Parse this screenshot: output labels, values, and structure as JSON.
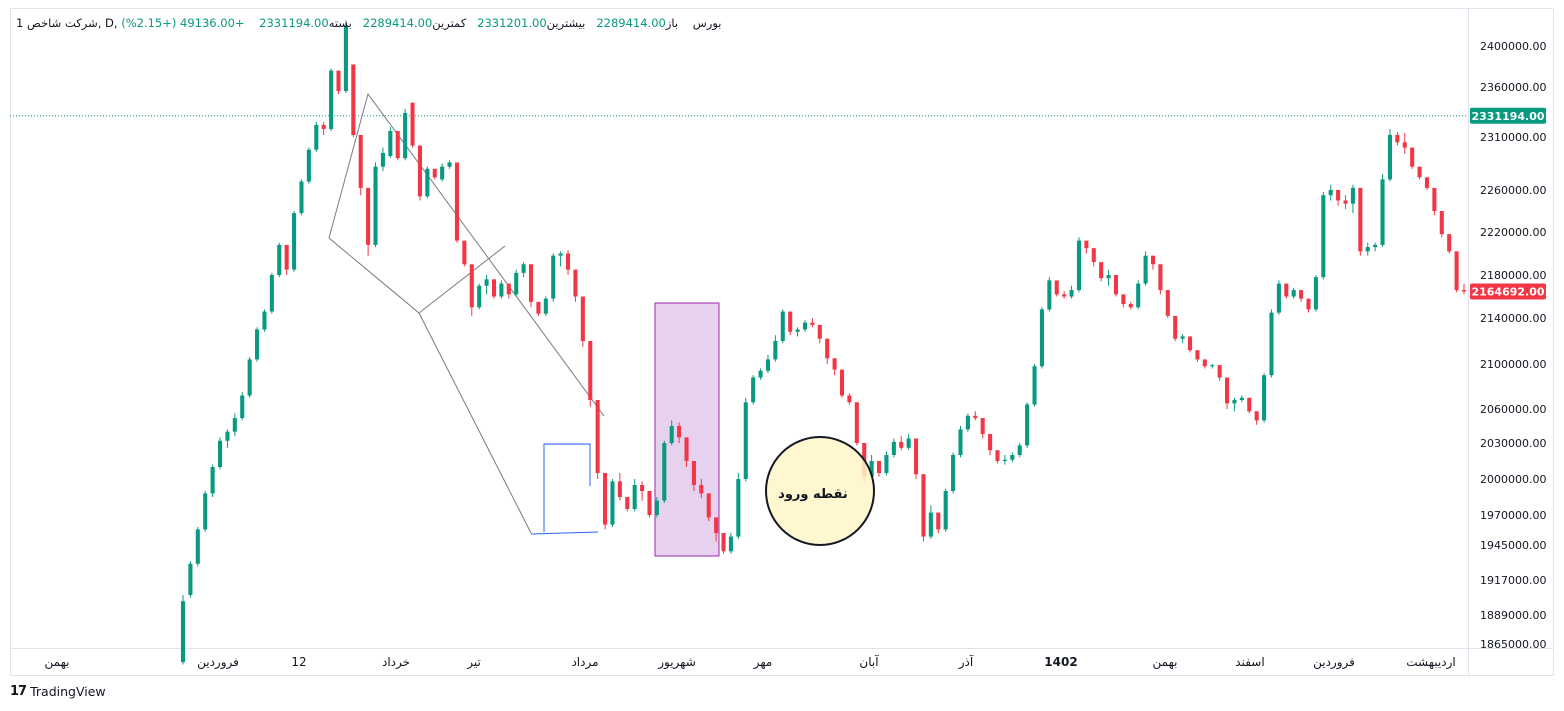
{
  "legend": {
    "symbol": "شرکت شاخص, D, بورس",
    "open_label": "باز",
    "open_value": "2289414.00",
    "high_label": "بیشترین",
    "high_value": "2331201.00",
    "low_label": "کمترین",
    "low_value": "2289414.00",
    "close_label": "بسته",
    "close_value": "2331194.00",
    "change": "+49136.00 (+2.15%)",
    "interval_mark": "1"
  },
  "brand": {
    "logo": "17",
    "name": "TradingView"
  },
  "annotation": {
    "entry_point_label": "نقطه ورود"
  },
  "colors": {
    "up": "#089981",
    "down": "#f23645",
    "last_price_tag": "#089981",
    "current_price_tag": "#f23645",
    "highlight_fill": "#e6d1ef",
    "highlight_stroke": "#9c27b0",
    "circle_fill": "#fff6c8",
    "rect_stroke": "#2962ff",
    "trendline": "#787b86"
  },
  "chart_data": {
    "type": "candlestick",
    "y_scale": "log",
    "y_ticks": [
      2400000,
      2360000,
      2310000,
      2260000,
      2220000,
      2180000,
      2140000,
      2100000,
      2060000,
      2030000,
      2000000,
      1970000,
      1945000,
      1917000,
      1889000,
      1865000
    ],
    "y_tick_labels": [
      "2400000.00",
      "2360000.00",
      "2310000.00",
      "2260000.00",
      "2220000.00",
      "2180000.00",
      "2140000.00",
      "2100000.00",
      "2060000.00",
      "2030000.00",
      "2000000.00",
      "1970000.00",
      "1945000.00",
      "1917000.00",
      "1889000.00",
      "1865000.00"
    ],
    "price_tags": [
      {
        "value": 2331194,
        "label": "2331194.00",
        "kind": "last"
      },
      {
        "value": 2164692,
        "label": "2164692.00",
        "kind": "current"
      }
    ],
    "x_labels": [
      "بهمن",
      "فروردین",
      "12",
      "خرداد",
      "تیر",
      "مرداد",
      "شهریور",
      "مهر",
      "آبان",
      "آذر",
      "1402",
      "بهمن",
      "اسفند",
      "فروردین",
      "اردیبهشت"
    ],
    "x_label_bold": [
      false,
      false,
      false,
      false,
      false,
      false,
      false,
      false,
      false,
      false,
      true,
      false,
      false,
      false,
      false
    ],
    "candles_ohlc": [
      [
        1850000,
        1905000,
        1848000,
        1900000
      ],
      [
        1905000,
        1932000,
        1903000,
        1930000
      ],
      [
        1930000,
        1960000,
        1928000,
        1958000
      ],
      [
        1958000,
        1990000,
        1956000,
        1988000
      ],
      [
        1988000,
        2012000,
        1985000,
        2010000
      ],
      [
        2010000,
        2035000,
        2008000,
        2032000
      ],
      [
        2032000,
        2042000,
        2026000,
        2040000
      ],
      [
        2040000,
        2056000,
        2036000,
        2052000
      ],
      [
        2052000,
        2075000,
        2050000,
        2072000
      ],
      [
        2072000,
        2106000,
        2070000,
        2104000
      ],
      [
        2104000,
        2132000,
        2102000,
        2130000
      ],
      [
        2130000,
        2148000,
        2128000,
        2146000
      ],
      [
        2146000,
        2182000,
        2144000,
        2180000
      ],
      [
        2180000,
        2210000,
        2178000,
        2208000
      ],
      [
        2208000,
        2205000,
        2180000,
        2185000
      ],
      [
        2185000,
        2240000,
        2183000,
        2238000
      ],
      [
        2238000,
        2270000,
        2236000,
        2268000
      ],
      [
        2268000,
        2300000,
        2266000,
        2298000
      ],
      [
        2298000,
        2325000,
        2296000,
        2322000
      ],
      [
        2322000,
        2325000,
        2312000,
        2318000
      ],
      [
        2318000,
        2378000,
        2316000,
        2376000
      ],
      [
        2376000,
        2368000,
        2353000,
        2356000
      ],
      [
        2356000,
        2425000,
        2354000,
        2420000
      ],
      [
        2382000,
        2380000,
        2310000,
        2312000
      ],
      [
        2312000,
        2308000,
        2255000,
        2262000
      ],
      [
        2262000,
        2262000,
        2198000,
        2208000
      ],
      [
        2208000,
        2286000,
        2206000,
        2282000
      ],
      [
        2282000,
        2300000,
        2278000,
        2295000
      ],
      [
        2292000,
        2320000,
        2290000,
        2316000
      ],
      [
        2316000,
        2300000,
        2288000,
        2290000
      ],
      [
        2290000,
        2338000,
        2288000,
        2334000
      ],
      [
        2344000,
        2345000,
        2300000,
        2302000
      ],
      [
        2302000,
        2300000,
        2250000,
        2254000
      ],
      [
        2254000,
        2282000,
        2252000,
        2280000
      ],
      [
        2280000,
        2278000,
        2270000,
        2272000
      ],
      [
        2270000,
        2285000,
        2268000,
        2282000
      ],
      [
        2282000,
        2288000,
        2280000,
        2286000
      ],
      [
        2286000,
        2272000,
        2210000,
        2212000
      ],
      [
        2212000,
        2208000,
        2188000,
        2190000
      ],
      [
        2190000,
        2188000,
        2142000,
        2150000
      ],
      [
        2150000,
        2172000,
        2148000,
        2170000
      ],
      [
        2170000,
        2180000,
        2162000,
        2176000
      ],
      [
        2176000,
        2174000,
        2158000,
        2160000
      ],
      [
        2160000,
        2175000,
        2158000,
        2172000
      ],
      [
        2172000,
        2170000,
        2158000,
        2162000
      ],
      [
        2162000,
        2185000,
        2160000,
        2182000
      ],
      [
        2182000,
        2192000,
        2178000,
        2190000
      ],
      [
        2190000,
        2188000,
        2150000,
        2155000
      ],
      [
        2155000,
        2152000,
        2142000,
        2144000
      ],
      [
        2144000,
        2160000,
        2142000,
        2158000
      ],
      [
        2158000,
        2200000,
        2155000,
        2198000
      ],
      [
        2198000,
        2202000,
        2188000,
        2200000
      ],
      [
        2200000,
        2203000,
        2180000,
        2185000
      ],
      [
        2185000,
        2182000,
        2155000,
        2160000
      ],
      [
        2160000,
        2155000,
        2115000,
        2120000
      ],
      [
        2120000,
        2118000,
        2062000,
        2068000
      ],
      [
        2068000,
        2065000,
        2000000,
        2005000
      ],
      [
        2005000,
        2002000,
        1958000,
        1962000
      ],
      [
        1962000,
        2000000,
        1960000,
        1998000
      ],
      [
        1998000,
        2005000,
        1982000,
        1985000
      ],
      [
        1985000,
        1982000,
        1973000,
        1975000
      ],
      [
        1975000,
        2000000,
        1973000,
        1995000
      ],
      [
        1995000,
        1998000,
        1982000,
        1990000
      ],
      [
        1990000,
        1988000,
        1968000,
        1970000
      ],
      [
        1970000,
        1985000,
        1968000,
        1982000
      ],
      [
        1982000,
        2032000,
        1980000,
        2030000
      ],
      [
        2030000,
        2050000,
        2028000,
        2045000
      ],
      [
        2045000,
        2048000,
        2030000,
        2035000
      ],
      [
        2035000,
        2032000,
        2010000,
        2015000
      ],
      [
        2015000,
        2010000,
        1990000,
        1995000
      ],
      [
        1995000,
        2000000,
        1984000,
        1988000
      ],
      [
        1988000,
        1985000,
        1965000,
        1968000
      ],
      [
        1968000,
        1962000,
        1948000,
        1955000
      ],
      [
        1955000,
        1952000,
        1938000,
        1940000
      ],
      [
        1940000,
        1955000,
        1938000,
        1952000
      ],
      [
        1952000,
        2005000,
        1950000,
        2000000
      ],
      [
        2000000,
        2070000,
        1998000,
        2066000
      ],
      [
        2066000,
        2090000,
        2064000,
        2088000
      ],
      [
        2088000,
        2096000,
        2086000,
        2094000
      ],
      [
        2094000,
        2108000,
        2092000,
        2104000
      ],
      [
        2104000,
        2125000,
        2102000,
        2120000
      ],
      [
        2120000,
        2148000,
        2118000,
        2146000
      ],
      [
        2146000,
        2145000,
        2125000,
        2128000
      ],
      [
        2128000,
        2132000,
        2124000,
        2130000
      ],
      [
        2130000,
        2138000,
        2128000,
        2136000
      ],
      [
        2136000,
        2140000,
        2132000,
        2134000
      ],
      [
        2134000,
        2132000,
        2118000,
        2122000
      ],
      [
        2122000,
        2120000,
        2100000,
        2105000
      ],
      [
        2105000,
        2102000,
        2090000,
        2095000
      ],
      [
        2095000,
        2090000,
        2070000,
        2072000
      ],
      [
        2072000,
        2074000,
        2064000,
        2066000
      ],
      [
        2066000,
        2064000,
        2028000,
        2030000
      ],
      [
        2030000,
        2025000,
        1998000,
        2002000
      ],
      [
        2002000,
        2020000,
        2000000,
        2015000
      ],
      [
        2015000,
        2013000,
        2002000,
        2005000
      ],
      [
        2005000,
        2023000,
        2003000,
        2020000
      ],
      [
        2020000,
        2034000,
        2018000,
        2031000
      ],
      [
        2031000,
        2036000,
        2024000,
        2026000
      ],
      [
        2026000,
        2038000,
        2024000,
        2034000
      ],
      [
        2034000,
        2032000,
        2000000,
        2004000
      ],
      [
        2004000,
        1990000,
        1948000,
        1952000
      ],
      [
        1952000,
        1978000,
        1950000,
        1972000
      ],
      [
        1972000,
        1970000,
        1955000,
        1958000
      ],
      [
        1958000,
        1992000,
        1956000,
        1990000
      ],
      [
        1990000,
        2022000,
        1988000,
        2020000
      ],
      [
        2020000,
        2045000,
        2018000,
        2042000
      ],
      [
        2042000,
        2056000,
        2040000,
        2054000
      ],
      [
        2054000,
        2058000,
        2050000,
        2052000
      ],
      [
        2052000,
        2050000,
        2034000,
        2038000
      ],
      [
        2038000,
        2036000,
        2020000,
        2024000
      ],
      [
        2024000,
        2022000,
        2013000,
        2015000
      ],
      [
        2015000,
        2020000,
        2012000,
        2016000
      ],
      [
        2016000,
        2022000,
        2014000,
        2020000
      ],
      [
        2020000,
        2030000,
        2018000,
        2028000
      ],
      [
        2028000,
        2066000,
        2026000,
        2064000
      ],
      [
        2064000,
        2100000,
        2062000,
        2098000
      ],
      [
        2098000,
        2150000,
        2096000,
        2148000
      ],
      [
        2148000,
        2178000,
        2146000,
        2175000
      ],
      [
        2175000,
        2173000,
        2160000,
        2162000
      ],
      [
        2162000,
        2165000,
        2158000,
        2160000
      ],
      [
        2160000,
        2170000,
        2158000,
        2166000
      ],
      [
        2166000,
        2215000,
        2164000,
        2212000
      ],
      [
        2212000,
        2210000,
        2200000,
        2205000
      ],
      [
        2205000,
        2202000,
        2188000,
        2192000
      ],
      [
        2192000,
        2190000,
        2174000,
        2177000
      ],
      [
        2177000,
        2185000,
        2170000,
        2180000
      ],
      [
        2180000,
        2176000,
        2160000,
        2162000
      ],
      [
        2162000,
        2160000,
        2150000,
        2153000
      ],
      [
        2153000,
        2155000,
        2148000,
        2150000
      ],
      [
        2150000,
        2175000,
        2148000,
        2172000
      ],
      [
        2172000,
        2202000,
        2170000,
        2198000
      ],
      [
        2198000,
        2195000,
        2185000,
        2190000
      ],
      [
        2190000,
        2185000,
        2162000,
        2166000
      ],
      [
        2166000,
        2163000,
        2140000,
        2142000
      ],
      [
        2142000,
        2138000,
        2120000,
        2122000
      ],
      [
        2122000,
        2126000,
        2118000,
        2124000
      ],
      [
        2124000,
        2120000,
        2110000,
        2112000
      ],
      [
        2112000,
        2108000,
        2102000,
        2104000
      ],
      [
        2104000,
        2102000,
        2096000,
        2098000
      ],
      [
        2098000,
        2100000,
        2096000,
        2099000
      ],
      [
        2099000,
        2097000,
        2085000,
        2088000
      ],
      [
        2088000,
        2086000,
        2060000,
        2065000
      ],
      [
        2065000,
        2070000,
        2058000,
        2068000
      ],
      [
        2068000,
        2072000,
        2066000,
        2070000
      ],
      [
        2070000,
        2068000,
        2056000,
        2058000
      ],
      [
        2058000,
        2055000,
        2046000,
        2050000
      ],
      [
        2050000,
        2092000,
        2048000,
        2090000
      ],
      [
        2090000,
        2148000,
        2088000,
        2145000
      ],
      [
        2145000,
        2175000,
        2143000,
        2172000
      ],
      [
        2172000,
        2170000,
        2158000,
        2160000
      ],
      [
        2160000,
        2168000,
        2158000,
        2166000
      ],
      [
        2166000,
        2165000,
        2155000,
        2158000
      ],
      [
        2158000,
        2155000,
        2145000,
        2148000
      ],
      [
        2148000,
        2180000,
        2146000,
        2178000
      ],
      [
        2178000,
        2258000,
        2176000,
        2255000
      ],
      [
        2255000,
        2265000,
        2250000,
        2260000
      ],
      [
        2260000,
        2258000,
        2245000,
        2250000
      ],
      [
        2250000,
        2255000,
        2242000,
        2247000
      ],
      [
        2247000,
        2265000,
        2238000,
        2262000
      ],
      [
        2262000,
        2260000,
        2198000,
        2202000
      ],
      [
        2202000,
        2210000,
        2198000,
        2206000
      ],
      [
        2206000,
        2210000,
        2202000,
        2208000
      ],
      [
        2208000,
        2275000,
        2206000,
        2270000
      ],
      [
        2270000,
        2318000,
        2268000,
        2312000
      ],
      [
        2312000,
        2315000,
        2302000,
        2305000
      ],
      [
        2305000,
        2314000,
        2294000,
        2300000
      ],
      [
        2300000,
        2298000,
        2280000,
        2282000
      ],
      [
        2282000,
        2280000,
        2270000,
        2272000
      ],
      [
        2272000,
        2270000,
        2260000,
        2262000
      ],
      [
        2262000,
        2260000,
        2236000,
        2240000
      ],
      [
        2240000,
        2236000,
        2215000,
        2218000
      ],
      [
        2218000,
        2215000,
        2200000,
        2202000
      ],
      [
        2202000,
        2198000,
        2164000,
        2166000
      ],
      [
        2166000,
        2172000,
        2162000,
        2164692
      ]
    ]
  }
}
